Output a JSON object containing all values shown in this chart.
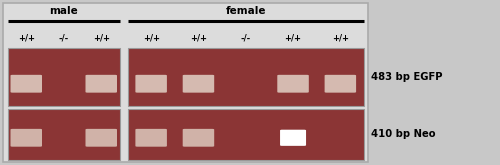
{
  "fig_width": 5.0,
  "fig_height": 1.65,
  "dpi": 100,
  "outer_bg": "#c8c8c8",
  "inner_bg": "#e8e8e8",
  "gel_bg": "#8B3535",
  "gel_border_color": "#999999",
  "band_color": "#e8ddd0",
  "bright_spot_color": "#ffffff",
  "male_label": "male",
  "female_label": "female",
  "male_lanes": [
    "+/+",
    "-/-",
    "+/+"
  ],
  "female_lanes": [
    "+/+",
    "+/+",
    "-/-",
    "+/+",
    "+/+"
  ],
  "label_egfp": "483 bp EGFP",
  "label_neo": "410 bp Neo",
  "egfp_top_bands": [
    {
      "panel": "male",
      "lane": 0,
      "present": true
    },
    {
      "panel": "male",
      "lane": 1,
      "present": false
    },
    {
      "panel": "male",
      "lane": 2,
      "present": true
    },
    {
      "panel": "female",
      "lane": 0,
      "present": true
    },
    {
      "panel": "female",
      "lane": 1,
      "present": true
    },
    {
      "panel": "female",
      "lane": 2,
      "present": false
    },
    {
      "panel": "female",
      "lane": 3,
      "present": true
    },
    {
      "panel": "female",
      "lane": 4,
      "present": true
    }
  ],
  "neo_bot_bands": [
    {
      "panel": "male",
      "lane": 0,
      "present": true
    },
    {
      "panel": "male",
      "lane": 1,
      "present": false
    },
    {
      "panel": "male",
      "lane": 2,
      "present": true
    },
    {
      "panel": "female",
      "lane": 0,
      "present": true
    },
    {
      "panel": "female",
      "lane": 1,
      "present": true
    },
    {
      "panel": "female",
      "lane": 2,
      "present": false
    },
    {
      "panel": "female",
      "lane": 3,
      "present": true,
      "bright": true
    },
    {
      "panel": "female",
      "lane": 4,
      "present": false
    }
  ]
}
